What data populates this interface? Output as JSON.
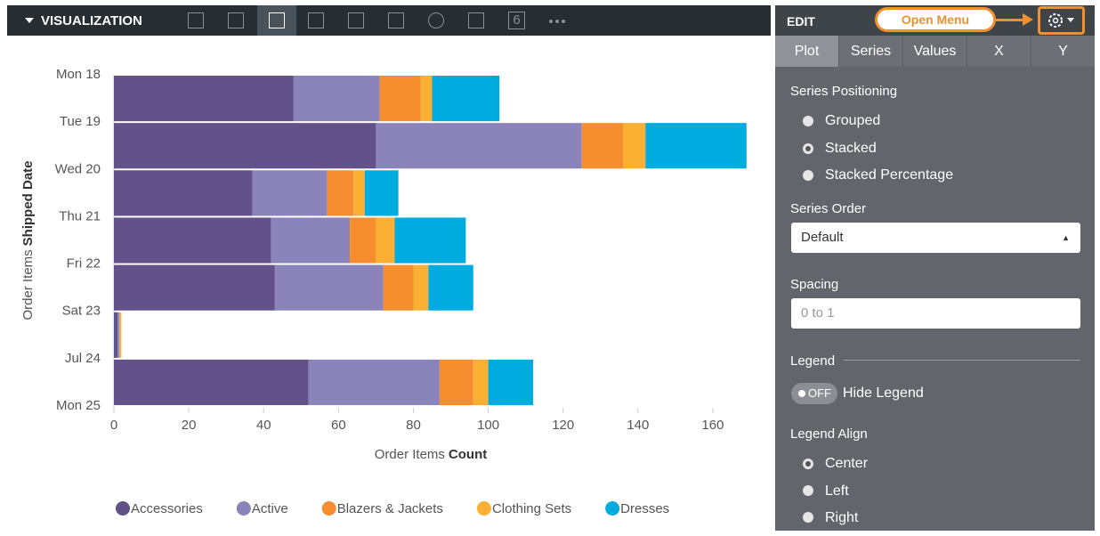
{
  "toolbar": {
    "title": "VISUALIZATION",
    "single_value_icon": "6"
  },
  "chart_data": {
    "type": "bar",
    "orientation": "horizontal",
    "stacked": true,
    "x_label": {
      "field": "Order Items",
      "name": "Count"
    },
    "y_label": {
      "field": "Order Items",
      "name": "Shipped Date"
    },
    "categories": [
      "Mon 18",
      "Tue 19",
      "Wed 20",
      "Thu 21",
      "Fri 22",
      "Sat 23",
      "Jul 24",
      "Mon 25"
    ],
    "series": [
      {
        "name": "Accessories",
        "color": "#635189",
        "values": [
          48,
          70,
          37,
          42,
          43,
          1,
          52,
          null
        ]
      },
      {
        "name": "Active",
        "color": "#8a84bb",
        "values": [
          23,
          55,
          20,
          21,
          29,
          0.5,
          35,
          null
        ]
      },
      {
        "name": "Blazers & Jackets",
        "color": "#f68d2e",
        "values": [
          11,
          11,
          7,
          7,
          8,
          0,
          9,
          null
        ]
      },
      {
        "name": "Clothing Sets",
        "color": "#fbb034",
        "values": [
          3,
          6,
          3,
          5,
          4,
          0.5,
          4,
          null
        ]
      },
      {
        "name": "Dresses",
        "color": "#00abe0",
        "values": [
          18,
          27,
          9,
          19,
          12,
          0,
          12,
          null
        ]
      }
    ],
    "xlim": [
      0,
      170
    ],
    "xticks": [
      0,
      20,
      40,
      60,
      80,
      100,
      120,
      140,
      160
    ],
    "grid": false,
    "legend": "bottom"
  },
  "edit_panel": {
    "title": "EDIT",
    "annotation": "Open Menu",
    "tabs": [
      "Plot",
      "Series",
      "Values",
      "X",
      "Y"
    ],
    "series_positioning": {
      "label": "Series Positioning",
      "options": [
        "Grouped",
        "Stacked",
        "Stacked Percentage"
      ]
    },
    "series_order": {
      "label": "Series Order",
      "value": "Default"
    },
    "spacing": {
      "label": "Spacing",
      "placeholder": "0 to 1"
    },
    "legend": {
      "label": "Legend",
      "toggle": "OFF",
      "option": "Hide Legend"
    },
    "legend_align": {
      "label": "Legend Align",
      "options": [
        "Center",
        "Left",
        "Right"
      ]
    }
  }
}
